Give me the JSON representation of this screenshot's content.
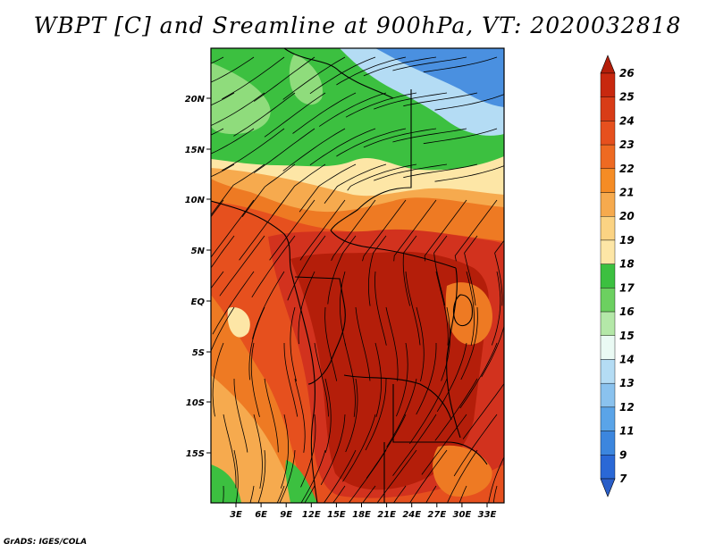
{
  "title": "WBPT [C] and Sreamline at 900hPa, VT: 2020032818",
  "credit": "GrADS: IGES/COLA",
  "map": {
    "lat_ticks": [
      "20N",
      "15N",
      "10N",
      "5N",
      "EQ",
      "5S",
      "10S",
      "15S"
    ],
    "lon_ticks": [
      "3E",
      "6E",
      "9E",
      "12E",
      "15E",
      "18E",
      "21E",
      "24E",
      "27E",
      "30E",
      "33E"
    ],
    "colors": {
      "deep_red": "#b41e0a",
      "red": "#d2321e",
      "red_orange": "#e6501e",
      "orange": "#ee7a23",
      "light_orange": "#f6aa4e",
      "yellow": "#fde6a6",
      "green": "#3cc040",
      "light_green": "#8fdc7c",
      "blue": "#4a90e0",
      "light_blue": "#b4dcf4"
    }
  },
  "colorbar": {
    "labels": [
      "26",
      "25",
      "24",
      "23",
      "22",
      "21",
      "20",
      "19",
      "18",
      "17",
      "16",
      "15",
      "14",
      "13",
      "12",
      "11",
      "9",
      "7"
    ],
    "colors": [
      "#b41e0a",
      "#c8280f",
      "#d83c17",
      "#e6501e",
      "#ee6a22",
      "#f58c25",
      "#f6aa4e",
      "#fbd383",
      "#fde6a6",
      "#3cc040",
      "#6cd060",
      "#b4e8a8",
      "#eafaf4",
      "#b4dcf4",
      "#8ac2ee",
      "#5aa4e8",
      "#3c86de",
      "#2a68d6",
      "#2a5ec8"
    ]
  }
}
